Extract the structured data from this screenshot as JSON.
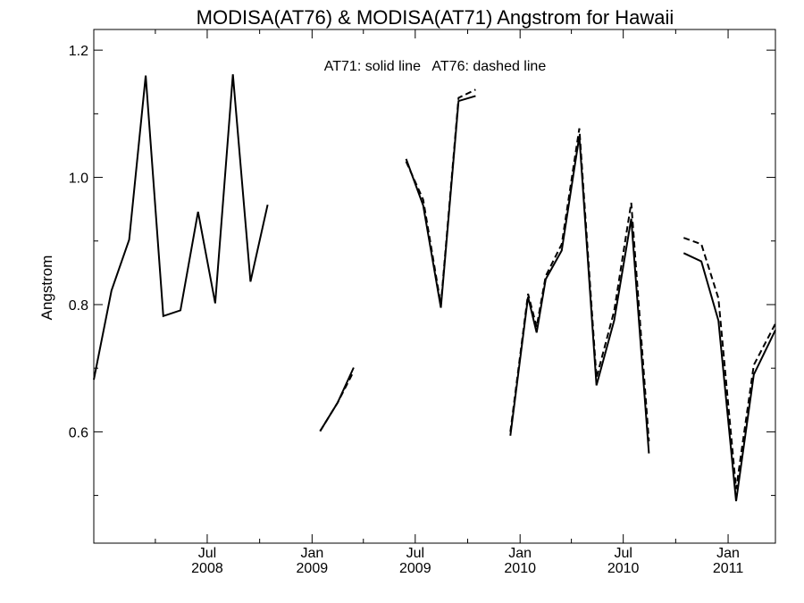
{
  "chart_data": {
    "type": "line",
    "title": "MODISA(AT76) & MODISA(AT71)  Angstrom for Hawaii",
    "ylabel": "Angstrom",
    "xlabel": "",
    "annotation": "AT71: solid line   AT76: dashed line",
    "xlim": [
      "2007-12-15",
      "2011-03-25"
    ],
    "ylim": [
      0.425,
      1.2325
    ],
    "yticks_major": [
      0.6,
      0.8,
      1.0,
      1.2
    ],
    "yticks_major_labels": [
      "0.6",
      "0.8",
      "1.0",
      "1.2"
    ],
    "yticks_minor": [
      0.5,
      0.7,
      0.9,
      1.1
    ],
    "xticks": [
      {
        "date": "2008-07-01",
        "label_top": "Jul",
        "label_bottom": "2008"
      },
      {
        "date": "2009-01-01",
        "label_top": "Jan",
        "label_bottom": "2009"
      },
      {
        "date": "2009-07-01",
        "label_top": "Jul",
        "label_bottom": "2009"
      },
      {
        "date": "2010-01-01",
        "label_top": "Jan",
        "label_bottom": "2010"
      },
      {
        "date": "2010-07-01",
        "label_top": "Jul",
        "label_bottom": "2010"
      },
      {
        "date": "2011-01-01",
        "label_top": "Jan",
        "label_bottom": "2011"
      }
    ],
    "xticks_minor": [
      "2008-04-01",
      "2008-10-01",
      "2009-04-01",
      "2009-10-01",
      "2010-04-01",
      "2010-10-01"
    ],
    "grid": false,
    "series": [
      {
        "name": "AT71",
        "style": "solid",
        "color": "#000000",
        "points": [
          [
            "2007-12-15",
            0.682
          ],
          [
            "2008-01-15",
            0.822
          ],
          [
            "2008-02-15",
            0.902
          ],
          [
            "2008-03-15",
            1.16
          ],
          [
            "2008-04-15",
            0.782
          ],
          [
            "2008-05-15",
            0.791
          ],
          [
            "2008-06-15",
            0.946
          ],
          [
            "2008-07-15",
            0.802
          ],
          [
            "2008-08-15",
            1.162
          ],
          [
            "2008-09-15",
            0.836
          ],
          [
            "2008-10-15",
            0.957
          ],
          [
            "2008-11-15",
            null
          ],
          [
            "2008-12-15",
            null
          ],
          [
            "2009-01-15",
            0.601
          ],
          [
            "2009-02-15",
            0.646
          ],
          [
            "2009-03-15",
            0.701
          ],
          [
            "2009-04-15",
            null
          ],
          [
            "2009-05-15",
            null
          ],
          [
            "2009-06-15",
            1.029
          ],
          [
            "2009-07-15",
            0.956
          ],
          [
            "2009-08-15",
            0.795
          ],
          [
            "2009-09-15",
            1.12
          ],
          [
            "2009-10-15",
            1.128
          ],
          [
            "2009-11-15",
            null
          ],
          [
            "2009-12-15",
            0.594
          ],
          [
            "2010-01-15",
            0.812
          ],
          [
            "2010-01-30",
            0.756
          ],
          [
            "2010-02-15",
            0.84
          ],
          [
            "2010-03-15",
            0.885
          ],
          [
            "2010-04-15",
            1.065
          ],
          [
            "2010-05-15",
            0.673
          ],
          [
            "2010-06-15",
            0.775
          ],
          [
            "2010-07-15",
            0.935
          ],
          [
            "2010-08-15",
            0.566
          ],
          [
            "2010-09-15",
            null
          ],
          [
            "2010-10-15",
            0.881
          ],
          [
            "2010-11-15",
            0.868
          ],
          [
            "2010-12-15",
            0.775
          ],
          [
            "2011-01-15",
            0.491
          ],
          [
            "2011-02-15",
            0.69
          ],
          [
            "2011-03-25",
            0.76
          ]
        ]
      },
      {
        "name": "AT76",
        "style": "dashed",
        "color": "#000000",
        "points": [
          [
            "2008-12-15",
            null
          ],
          [
            "2009-01-15",
            0.601
          ],
          [
            "2009-02-15",
            0.646
          ],
          [
            "2009-03-15",
            0.695
          ],
          [
            "2009-04-15",
            null
          ],
          [
            "2009-05-15",
            null
          ],
          [
            "2009-06-15",
            1.025
          ],
          [
            "2009-07-15",
            0.965
          ],
          [
            "2009-08-15",
            0.8
          ],
          [
            "2009-09-15",
            1.125
          ],
          [
            "2009-10-15",
            1.138
          ],
          [
            "2009-11-15",
            null
          ],
          [
            "2009-12-15",
            0.6
          ],
          [
            "2010-01-15",
            0.817
          ],
          [
            "2010-01-30",
            0.765
          ],
          [
            "2010-02-15",
            0.845
          ],
          [
            "2010-03-15",
            0.895
          ],
          [
            "2010-04-15",
            1.077
          ],
          [
            "2010-05-15",
            0.685
          ],
          [
            "2010-06-15",
            0.79
          ],
          [
            "2010-07-15",
            0.96
          ],
          [
            "2010-08-15",
            0.585
          ],
          [
            "2010-09-15",
            null
          ],
          [
            "2010-10-15",
            0.905
          ],
          [
            "2010-11-15",
            0.895
          ],
          [
            "2010-12-15",
            0.81
          ],
          [
            "2011-01-15",
            0.51
          ],
          [
            "2011-02-15",
            0.705
          ],
          [
            "2011-03-25",
            0.77
          ]
        ]
      }
    ]
  }
}
